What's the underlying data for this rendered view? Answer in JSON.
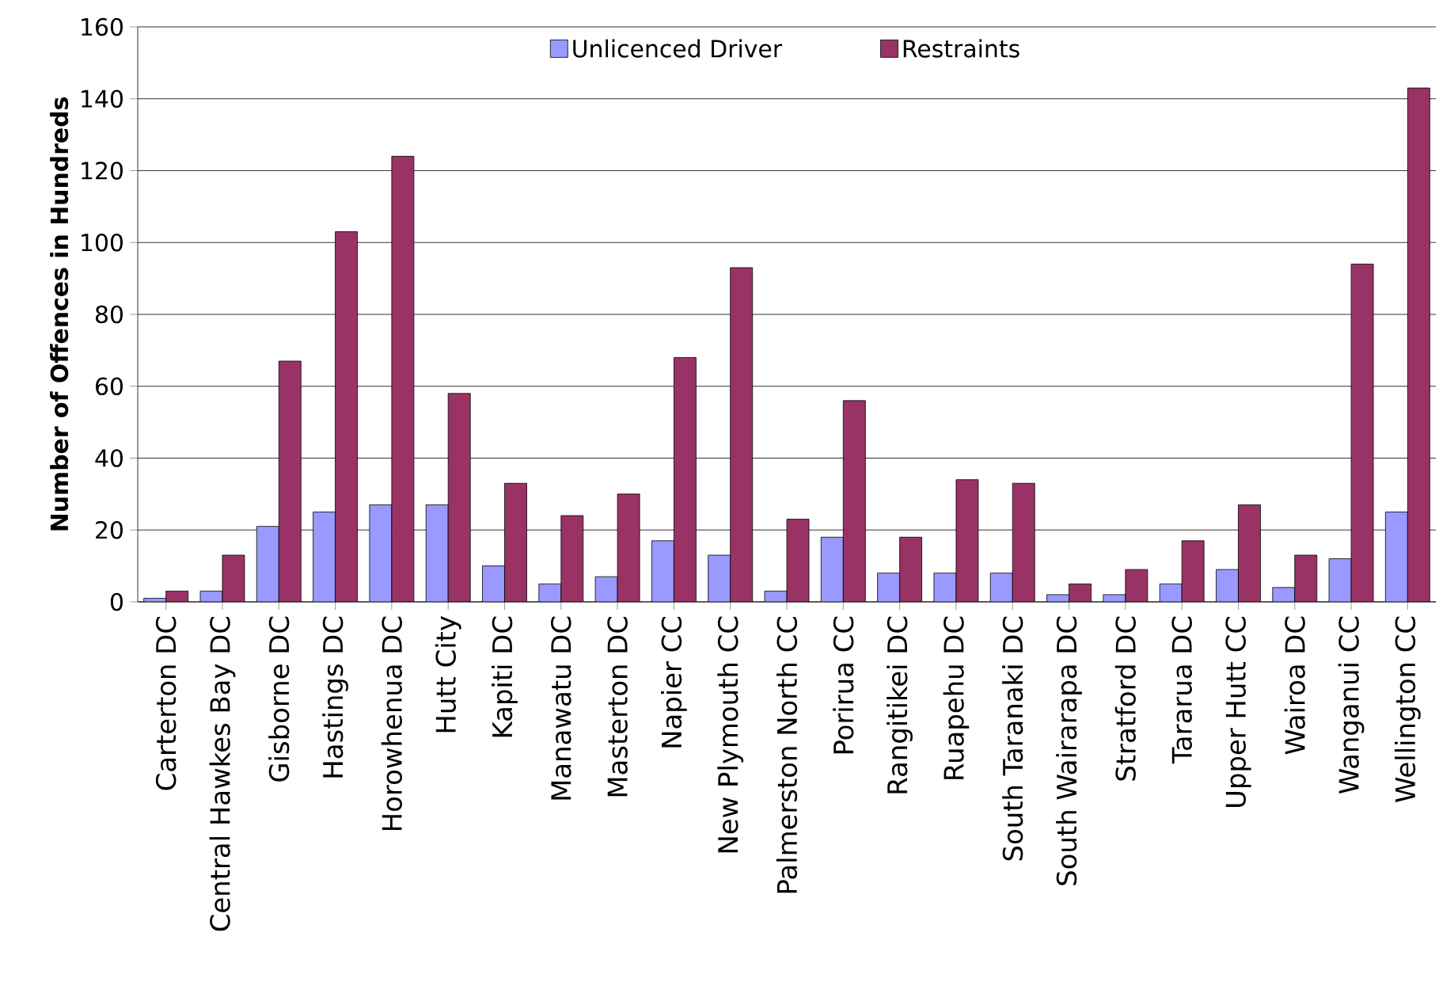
{
  "chart_data": {
    "type": "bar",
    "categories": [
      "Carterton DC",
      "Central Hawkes Bay DC",
      "Gisborne DC",
      "Hastings DC",
      "Horowhenua DC",
      "Hutt City",
      "Kapiti DC",
      "Manawatu DC",
      "Masterton DC",
      "Napier CC",
      "New Plymouth CC",
      "Palmerston North CC",
      "Porirua CC",
      "Rangitikei DC",
      "Ruapehu DC",
      "South Taranaki DC",
      "South Wairarapa DC",
      "Stratford DC",
      "Tararua DC",
      "Upper Hutt CC",
      "Wairoa DC",
      "Wanganui CC",
      "Wellington CC"
    ],
    "series": [
      {
        "name": "Unlicenced Driver",
        "color": "#9999ff",
        "values": [
          1,
          3,
          21,
          25,
          27,
          27,
          10,
          5,
          7,
          17,
          13,
          3,
          18,
          8,
          8,
          8,
          2,
          2,
          5,
          9,
          4,
          12,
          25
        ]
      },
      {
        "name": "Restraints",
        "color": "#993366",
        "values": [
          3,
          13,
          67,
          103,
          124,
          58,
          33,
          24,
          30,
          68,
          93,
          23,
          56,
          18,
          34,
          33,
          5,
          9,
          17,
          27,
          13,
          94,
          143
        ]
      }
    ],
    "ylabel": "Number of Offences in Hundreds",
    "ylim": [
      0,
      160
    ],
    "yticks": [
      0,
      20,
      40,
      60,
      80,
      100,
      120,
      140,
      160
    ],
    "grid": "y",
    "legend": "top"
  }
}
